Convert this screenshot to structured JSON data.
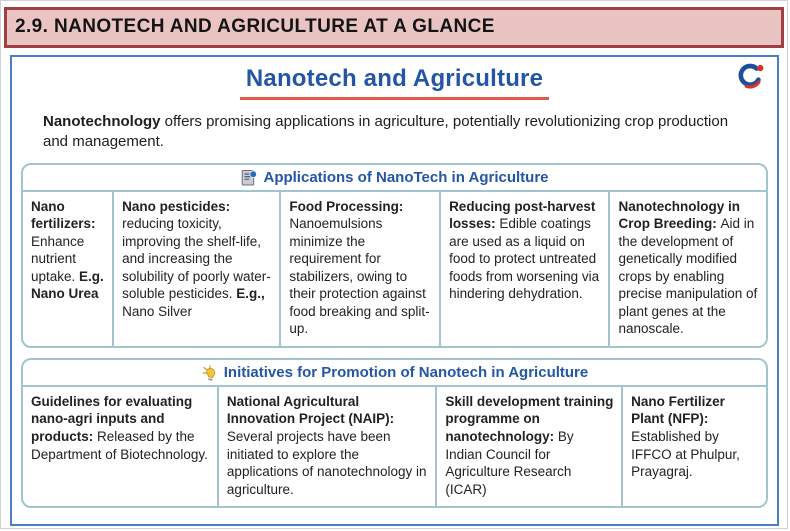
{
  "page_header": {
    "title": "2.9. NANOTECH AND AGRICULTURE AT A GLANCE"
  },
  "card": {
    "title": "Nanotech and Agriculture",
    "intro_lead": "Nanotechnology",
    "intro_rest": " offers promising applications in agriculture, potentially revolutionizing crop production and management."
  },
  "colors": {
    "banner_bg": "#eac3c3",
    "banner_border": "#9e4043",
    "card_border": "#4a7fc4",
    "heading_blue": "#2456a6",
    "underline_red": "#e25a4e",
    "table_border": "#a3c4cf"
  },
  "icons": {
    "section1": "document-magnifier-icon",
    "section2": "lightbulb-icon",
    "logo": "brand-logo"
  },
  "tables": [
    {
      "header": "Applications of NanoTech in Agriculture",
      "cells": [
        {
          "width_pct": 12,
          "segments": [
            {
              "t": "Nano fertilizers: ",
              "b": true
            },
            {
              "t": "Enhance nutrient uptake. ",
              "b": false
            },
            {
              "t": "E.g. Nano Urea",
              "b": true
            }
          ]
        },
        {
          "width_pct": 22.5,
          "segments": [
            {
              "t": "Nano pesticides: ",
              "b": true
            },
            {
              "t": "reducing toxicity, improving the shelf-life, and increasing the solubility of poorly water-soluble pesticides. ",
              "b": false
            },
            {
              "t": "E.g., ",
              "b": true
            },
            {
              "t": "Nano Silver",
              "b": false
            }
          ]
        },
        {
          "width_pct": 21.5,
          "segments": [
            {
              "t": "Food Processing: ",
              "b": true
            },
            {
              "t": "Nanoemulsions minimize the requirement for stabilizers, owing to their protection against food breaking and split-up.",
              "b": false
            }
          ]
        },
        {
          "width_pct": 22.8,
          "segments": [
            {
              "t": "Reducing post-harvest losses: ",
              "b": true
            },
            {
              "t": "Edible coatings are used as a liquid on food to protect untreated foods from worsening via hindering dehydration.",
              "b": false
            }
          ]
        },
        {
          "width_pct": 21.2,
          "segments": [
            {
              "t": "Nanotechnology in Crop Breeding: ",
              "b": true
            },
            {
              "t": "Aid in the development of genetically modified crops by enabling precise manipulation of plant genes at the nanoscale.",
              "b": false
            }
          ]
        }
      ]
    },
    {
      "header": "Initiatives for Promotion of Nanotech in Agriculture",
      "cells": [
        {
          "width_pct": 26.1,
          "segments": [
            {
              "t": "Guidelines for evaluating nano-agri inputs and products: ",
              "b": true
            },
            {
              "t": "Released by the Department of Biotechnology.",
              "b": false
            }
          ]
        },
        {
          "width_pct": 29.4,
          "segments": [
            {
              "t": "National Agricultural Innovation Project (NAIP): ",
              "b": true
            },
            {
              "t": "Several projects have been initiated to explore the applications of nanotechnology in agriculture.",
              "b": false
            }
          ]
        },
        {
          "width_pct": 25,
          "segments": [
            {
              "t": "Skill development training programme on nanotechnology: ",
              "b": true
            },
            {
              "t": "By Indian Council for Agriculture Research (ICAR)",
              "b": false
            }
          ]
        },
        {
          "width_pct": 19.5,
          "segments": [
            {
              "t": "Nano Fertilizer Plant (NFP): ",
              "b": true
            },
            {
              "t": "Established by IFFCO at Phulpur, Prayagraj.",
              "b": false
            }
          ]
        }
      ]
    }
  ]
}
